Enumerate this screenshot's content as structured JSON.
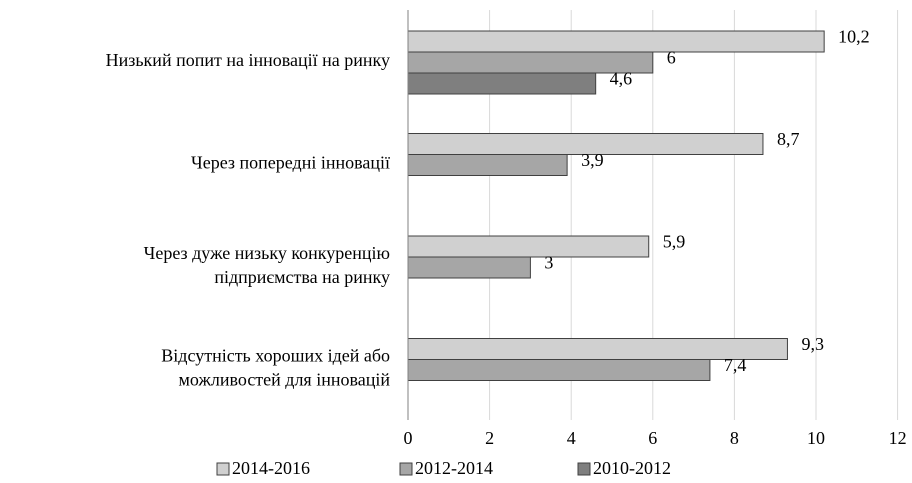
{
  "chart_data": {
    "type": "bar",
    "orientation": "horizontal",
    "categories": [
      "Низький попит на інновації на ринку",
      "Через попередні інновації",
      "Через дуже низьку конкуренцію\nпідприємства на ринку",
      "Відсутність хороших ідей або\nможливостей для інновацій"
    ],
    "series": [
      {
        "name": "2014-2016",
        "color": "#d0d0d0",
        "values": [
          10.2,
          8.7,
          5.9,
          9.3
        ],
        "value_labels": [
          "10,2",
          "8,7",
          "5,9",
          "9,3"
        ]
      },
      {
        "name": "2012-2014",
        "color": "#a6a6a6",
        "values": [
          6,
          3.9,
          3,
          7.4
        ],
        "value_labels": [
          "6",
          "3,9",
          "3",
          "7,4"
        ]
      },
      {
        "name": "2010-2012",
        "color": "#7f7f7f",
        "values": [
          4.6,
          null,
          null,
          null
        ],
        "value_labels": [
          "4,6",
          null,
          null,
          null
        ]
      }
    ],
    "xlim": [
      0,
      12
    ],
    "xticks": [
      0,
      2,
      4,
      6,
      8,
      10,
      12
    ],
    "grid": true,
    "legend": "bottom"
  }
}
